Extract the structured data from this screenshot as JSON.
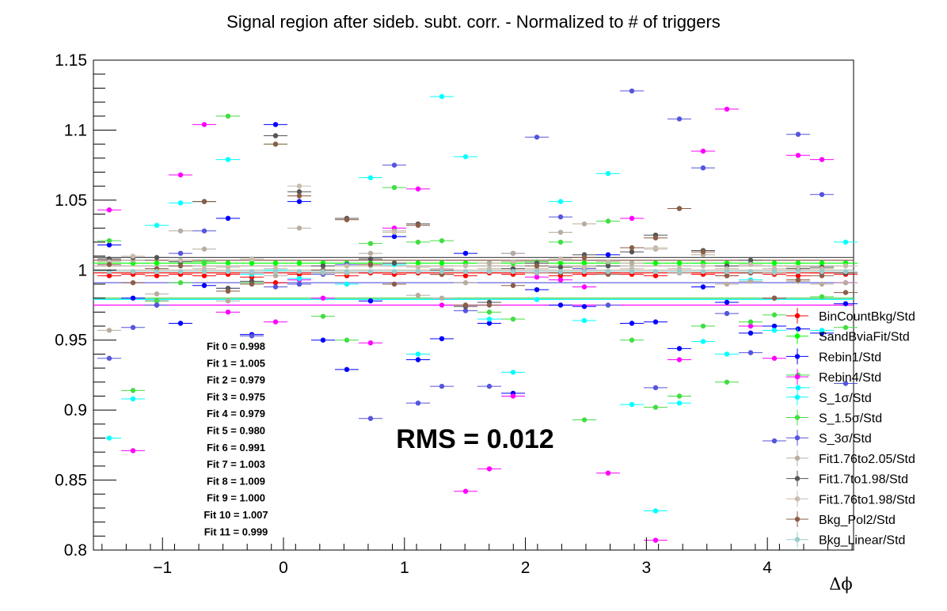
{
  "chart_data": {
    "type": "scatter",
    "title": "Signal region after sideb. subt. corr. - Normalized to # of triggers",
    "xlabel": "Δϕ",
    "ylabel": "",
    "xlim": [
      -1.5708,
      4.7124
    ],
    "ylim": [
      0.8,
      1.15
    ],
    "x_ticks": [
      -1,
      0,
      1,
      2,
      3,
      4
    ],
    "x_tick_labels": [
      "−1",
      "0",
      "1",
      "2",
      "3",
      "4"
    ],
    "y_ticks": [
      0.8,
      0.85,
      0.9,
      0.95,
      1,
      1.05,
      1.1,
      1.15
    ],
    "y_tick_labels": [
      "0.8",
      "0.85",
      "0.9",
      "0.95",
      "1",
      "1.05",
      "1.1",
      "1.15"
    ],
    "grid": false,
    "legend_position": "bottom-right",
    "x": [
      -1.4399,
      -1.2435,
      -1.0472,
      -0.8508,
      -0.6545,
      -0.4581,
      -0.2618,
      -0.0654,
      0.1309,
      0.3272,
      0.5236,
      0.7199,
      0.9163,
      1.1126,
      1.309,
      1.5053,
      1.7017,
      1.898,
      2.0944,
      2.2907,
      2.4871,
      2.6834,
      2.8798,
      3.0761,
      3.2725,
      3.4688,
      3.6652,
      3.8615,
      4.0579,
      4.2542,
      4.4506,
      4.6469
    ],
    "series": [
      {
        "name": "BinCountBkg/Std",
        "color": "#ff0000",
        "values": [
          0.996,
          0.997,
          0.996,
          0.997,
          0.996,
          0.997,
          0.995,
          0.991,
          0.997,
          0.998,
          0.996,
          0.998,
          0.997,
          0.998,
          0.997,
          0.996,
          0.998,
          0.997,
          0.998,
          0.996,
          0.997,
          0.998,
          0.997,
          0.996,
          0.998,
          0.997,
          0.996,
          0.998,
          0.997,
          0.996,
          0.998,
          0.997
        ],
        "fit": 0.998
      },
      {
        "name": "SandBviaFit/Std",
        "color": "#00ff00",
        "values": [
          1.005,
          1.005,
          1.005,
          1.005,
          1.005,
          1.005,
          1.005,
          1.005,
          1.005,
          1.005,
          1.005,
          1.005,
          1.005,
          1.005,
          1.005,
          1.005,
          1.005,
          1.005,
          1.005,
          1.005,
          1.005,
          1.005,
          1.005,
          1.005,
          1.005,
          1.005,
          1.005,
          1.005,
          1.005,
          1.005,
          1.005,
          1.005
        ],
        "fit": 1.005
      },
      {
        "name": "Rebin1/Std",
        "color": "#0000ff",
        "values": [
          1.018,
          0.98,
          0.975,
          0.962,
          0.989,
          1.037,
          0.954,
          1.104,
          1.049,
          0.95,
          0.929,
          0.978,
          1.024,
          0.936,
          0.951,
          1.012,
          0.962,
          0.912,
          0.986,
          0.975,
          0.974,
          1.011,
          0.962,
          0.963,
          0.944,
          0.988,
          0.977,
          0.955,
          0.96,
          0.958,
          0.955,
          0.976
        ],
        "fit": 0.979
      },
      {
        "name": "Rebin4/Std",
        "color": "#ff00ff",
        "values": [
          1.043,
          0.871,
          0.978,
          1.068,
          1.104,
          0.97,
          0.998,
          0.963,
          0.993,
          0.98,
          0.99,
          0.948,
          1.03,
          1.058,
          0.975,
          0.842,
          0.858,
          0.91,
          0.995,
          0.993,
          0.988,
          0.855,
          1.037,
          0.807,
          0.936,
          1.085,
          1.115,
          0.96,
          0.937,
          1.082,
          1.079,
          0.991
        ],
        "fit": 0.975
      },
      {
        "name": "S_1σ/Std",
        "color": "#00ffff",
        "values": [
          0.88,
          0.908,
          1.032,
          1.048,
          1.049,
          1.079,
          0.997,
          1.0,
          0.994,
          0.998,
          0.99,
          1.066,
          1.004,
          0.94,
          1.124,
          1.081,
          0.965,
          0.927,
          0.979,
          1.049,
          0.964,
          1.069,
          0.904,
          0.828,
          0.905,
          0.949,
          0.94,
          0.993,
          0.957,
          0.916,
          0.957,
          1.02
        ],
        "fit": 0.979
      },
      {
        "name": "S_1.5σ/Std",
        "color": "#44dd44",
        "values": [
          1.021,
          0.914,
          0.978,
          0.991,
          1.006,
          1.11,
          0.991,
          1.09,
          0.99,
          0.967,
          0.95,
          1.019,
          1.059,
          1.02,
          1.021,
          0.975,
          0.97,
          0.965,
          1.006,
          1.02,
          0.893,
          1.035,
          0.95,
          0.902,
          0.91,
          0.96,
          0.92,
          0.963,
          0.968,
          0.925,
          0.981,
          0.959
        ],
        "fit": 0.98
      },
      {
        "name": "S_3σ/Std",
        "color": "#5555dd",
        "values": [
          0.937,
          0.959,
          0.975,
          1.012,
          1.028,
          0.987,
          0.953,
          0.988,
          0.99,
          0.997,
          1.004,
          0.894,
          1.075,
          0.905,
          0.917,
          0.971,
          0.917,
          1.012,
          1.095,
          1.038,
          1.001,
          0.975,
          1.128,
          0.916,
          1.108,
          1.073,
          0.969,
          0.941,
          0.878,
          1.097,
          1.054,
          0.919
        ],
        "fit": 0.991
      },
      {
        "name": "Fit1.76to2.05/Std",
        "color": "#b8aca0",
        "values": [
          0.957,
          1.007,
          0.983,
          1.028,
          1.015,
          0.978,
          0.998,
          0.996,
          1.03,
          0.998,
          0.998,
          1.012,
          1.028,
          0.982,
          0.98,
          0.991,
          1.005,
          1.012,
          0.998,
          1.027,
          1.033,
          0.999,
          1.005,
          1.015,
          0.998,
          1.011,
          0.99,
          0.992,
          0.998,
          0.992,
          0.99,
          0.991
        ],
        "fit": 1.003
      },
      {
        "name": "Fit1.7to1.98/Std",
        "color": "#555555",
        "values": [
          1.008,
          1.009,
          1.009,
          1.006,
          1.049,
          0.987,
          0.992,
          1.096,
          1.056,
          1.003,
          1.037,
          1.008,
          1.005,
          1.033,
          1.0,
          0.974,
          0.977,
          1.001,
          1.005,
          1.002,
          1.011,
          1.003,
          1.013,
          1.025,
          1.044,
          1.014,
          1.003,
          1.007,
          0.98,
          1.001,
          1.002,
          0.998
        ],
        "fit": 1.009
      },
      {
        "name": "Fit1.76to1.98/Std",
        "color": "#c8bcae",
        "values": [
          1.006,
          1.01,
          1.001,
          1.007,
          1.001,
          1.002,
          1.008,
          1.001,
          1.06,
          1.0,
          1.003,
          1.003,
          1.027,
          1.002,
          1.001,
          1.003,
          1.001,
          1.006,
          1.001,
          1.008,
          1.002,
          1.006,
          1.001,
          1.016,
          1.001,
          1.003,
          1.001,
          1.004,
          1.001,
          1.002,
          1.001,
          1.003
        ],
        "fit": 1.0
      },
      {
        "name": "Bkg_Pol2/Std",
        "color": "#8b5e48",
        "values": [
          1.004,
          0.991,
          1.001,
          1.003,
          1.049,
          0.985,
          0.99,
          1.09,
          1.053,
          1.0,
          1.036,
          1.004,
          0.99,
          1.032,
          0.997,
          0.975,
          0.975,
          0.989,
          1.003,
          0.998,
          1.009,
          0.997,
          1.016,
          1.023,
          1.044,
          1.013,
          0.996,
          0.998,
          0.98,
          0.993,
          0.996,
          0.984
        ],
        "fit": 1.007
      },
      {
        "name": "Bkg_Linear/Std",
        "color": "#99cccc",
        "values": [
          0.999,
          0.999,
          0.999,
          0.999,
          0.999,
          0.999,
          0.999,
          0.999,
          0.999,
          0.999,
          0.999,
          0.999,
          0.999,
          0.999,
          0.999,
          0.999,
          0.999,
          0.999,
          0.999,
          0.999,
          0.999,
          0.999,
          0.999,
          0.999,
          0.999,
          0.999,
          0.999,
          0.999,
          0.999,
          0.999,
          0.999,
          0.999
        ],
        "fit": 0.999
      }
    ],
    "annotations": {
      "fit_labels": [
        "Fit 0 = 0.998",
        "Fit 1 = 1.005",
        "Fit 2 = 0.979",
        "Fit 3 = 0.975",
        "Fit 4 = 0.979",
        "Fit 5 = 0.980",
        "Fit 6 = 0.991",
        "Fit 7 = 1.003",
        "Fit 8 = 1.009",
        "Fit 9 = 1.000",
        "Fit 10 = 1.007",
        "Fit 11 = 0.999"
      ],
      "rms": "RMS = 0.012"
    }
  }
}
